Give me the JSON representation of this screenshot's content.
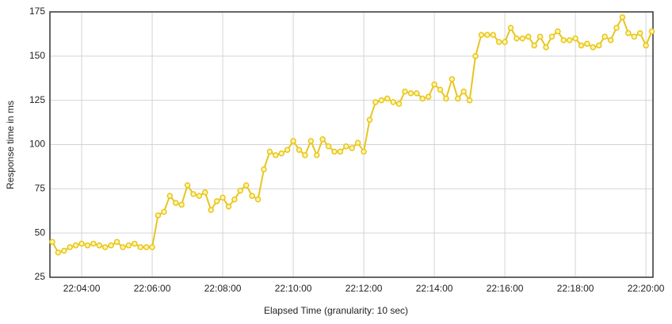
{
  "chart_data": {
    "type": "line",
    "xlabel": "Elapsed Time (granularity: 10 sec)",
    "ylabel": "Response time in ms",
    "x": [
      79390,
      79400,
      79410,
      79420,
      79430,
      79440,
      79450,
      79460,
      79470,
      79480,
      79490,
      79500,
      79510,
      79520,
      79530,
      79540,
      79550,
      79560,
      79570,
      79580,
      79590,
      79600,
      79610,
      79620,
      79630,
      79640,
      79650,
      79660,
      79670,
      79680,
      79690,
      79700,
      79710,
      79720,
      79730,
      79740,
      79750,
      79760,
      79770,
      79780,
      79790,
      79800,
      79810,
      79820,
      79830,
      79840,
      79850,
      79860,
      79870,
      79880,
      79890,
      79900,
      79910,
      79920,
      79930,
      79940,
      79950,
      79960,
      79970,
      79980,
      79990,
      80000,
      80010,
      80020,
      80030,
      80040,
      80050,
      80060,
      80070,
      80080,
      80090,
      80100,
      80110,
      80120,
      80130,
      80140,
      80150,
      80160,
      80170,
      80180,
      80190,
      80200,
      80210,
      80220,
      80230,
      80240,
      80250,
      80260,
      80270,
      80280,
      80290,
      80300,
      80310,
      80320,
      80330,
      80340,
      80350,
      80360,
      80370,
      80380,
      80390,
      80400,
      80410
    ],
    "series": [
      {
        "color": "#e8c51f",
        "marker_fill": "#fdf6a8",
        "values": [
          45,
          39,
          40,
          42,
          43,
          44,
          43,
          44,
          43,
          42,
          43,
          45,
          42,
          43,
          44,
          42,
          42,
          42,
          60,
          62,
          71,
          67,
          66,
          77,
          72,
          71,
          73,
          63,
          68,
          70,
          65,
          69,
          74,
          77,
          71,
          69,
          86,
          96,
          94,
          95,
          97,
          102,
          97,
          94,
          102,
          94,
          103,
          99,
          96,
          96,
          99,
          98,
          101,
          96,
          114,
          124,
          125,
          126,
          124,
          123,
          130,
          129,
          129,
          126,
          127,
          134,
          131,
          126,
          137,
          126,
          130,
          125,
          150,
          162,
          162,
          162,
          158,
          158,
          166,
          160,
          160,
          161,
          156,
          161,
          155,
          161,
          164,
          159,
          159,
          160,
          156,
          157,
          155,
          156,
          161,
          159,
          166,
          172,
          163,
          161,
          163,
          156,
          164
        ]
      }
    ],
    "xlim": [
      79386,
      80412
    ],
    "xticks": [
      {
        "value": 79440,
        "label": "22:04:00"
      },
      {
        "value": 79560,
        "label": "22:06:00"
      },
      {
        "value": 79680,
        "label": "22:08:00"
      },
      {
        "value": 79800,
        "label": "22:10:00"
      },
      {
        "value": 79920,
        "label": "22:12:00"
      },
      {
        "value": 80040,
        "label": "22:14:00"
      },
      {
        "value": 80160,
        "label": "22:16:00"
      },
      {
        "value": 80280,
        "label": "22:18:00"
      },
      {
        "value": 80400,
        "label": "22:20:00"
      }
    ],
    "ylim": [
      25,
      175
    ],
    "yticks": [
      25,
      50,
      75,
      100,
      125,
      150,
      175
    ],
    "grid": true
  }
}
